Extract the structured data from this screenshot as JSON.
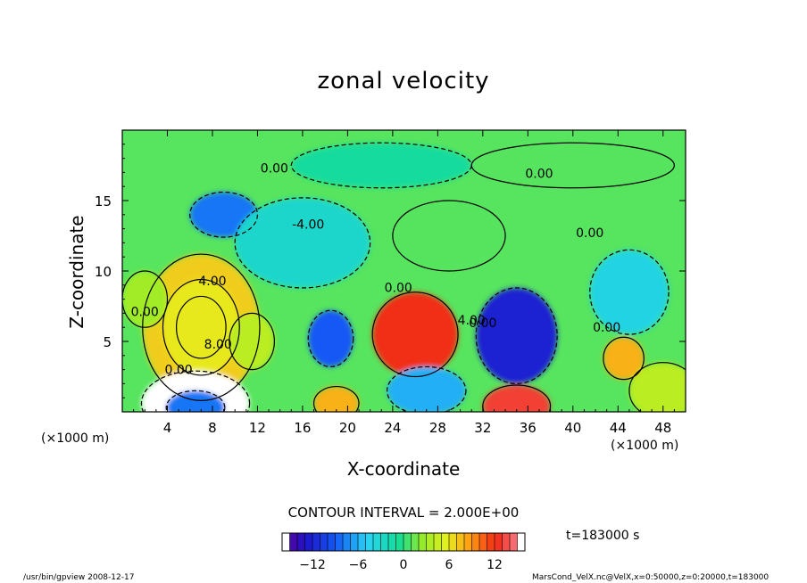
{
  "header": {
    "title": "zonal velocity"
  },
  "axes": {
    "xlabel": "X-coordinate",
    "ylabel": "Z-coordinate",
    "x_unit": "(×1000 m)",
    "z_unit": "(×1000 m)"
  },
  "info": {
    "contour_interval": "CONTOUR INTERVAL = 2.000E+00",
    "time": "t=183000 s"
  },
  "footer": {
    "left": "/usr/bin/gpview   2008-12-17",
    "right": "MarsCond_VelX.nc@VelX,x=0:50000,z=0:20000,t=183000"
  },
  "chart_data": {
    "type": "heatmap",
    "title": "zonal velocity",
    "xlabel": "X-coordinate",
    "ylabel": "Z-coordinate",
    "xlim": [
      0,
      50
    ],
    "ylim": [
      0,
      20
    ],
    "x_ticks": [
      "4",
      "8",
      "12",
      "16",
      "20",
      "24",
      "28",
      "32",
      "36",
      "40",
      "44",
      "48"
    ],
    "x_tick_values": [
      4,
      8,
      12,
      16,
      20,
      24,
      28,
      32,
      36,
      40,
      44,
      48
    ],
    "y_ticks": [
      "5",
      "10",
      "15"
    ],
    "y_tick_values": [
      5,
      10,
      15
    ],
    "contour_labels": [
      {
        "text": "0.00",
        "x": 13.5,
        "z": 17.0
      },
      {
        "text": "0.00",
        "x": 37.0,
        "z": 16.6
      },
      {
        "text": "-4.00",
        "x": 16.5,
        "z": 13.0
      },
      {
        "text": "4.00",
        "x": 8.0,
        "z": 9.0
      },
      {
        "text": "0.00",
        "x": 2.0,
        "z": 6.8
      },
      {
        "text": "8.00",
        "x": 8.5,
        "z": 4.5
      },
      {
        "text": "0.00",
        "x": 5.0,
        "z": 2.7
      },
      {
        "text": "0.00",
        "x": 24.5,
        "z": 8.5
      },
      {
        "text": "4.00",
        "x": 31.0,
        "z": 6.2
      },
      {
        "text": "0.00",
        "x": 32.0,
        "z": 6.0
      },
      {
        "text": "0.00",
        "x": 41.5,
        "z": 12.4
      },
      {
        "text": "0.00",
        "x": 43.0,
        "z": 5.7
      }
    ],
    "blobs": [
      {
        "x": 7.0,
        "z": 6.0,
        "rx": 5.2,
        "rz": 5.2,
        "v": 7
      },
      {
        "x": 7.0,
        "z": 6.0,
        "rx": 3.4,
        "rz": 3.4,
        "v": 6
      },
      {
        "x": 7.0,
        "z": 6.0,
        "rx": 2.2,
        "rz": 2.2,
        "v": 6
      },
      {
        "x": 6.5,
        "z": 0.6,
        "rx": 4.8,
        "rz": 2.3,
        "v": -16
      },
      {
        "x": 6.5,
        "z": 0.3,
        "rx": 2.6,
        "rz": 1.2,
        "v": -8
      },
      {
        "x": 18.5,
        "z": 5.2,
        "rx": 2.0,
        "rz": 2.0,
        "v": -9
      },
      {
        "x": 26.0,
        "z": 5.5,
        "rx": 3.8,
        "rz": 3.0,
        "v": 12
      },
      {
        "x": 35.0,
        "z": 5.4,
        "rx": 3.6,
        "rz": 3.4,
        "v": -12
      },
      {
        "x": 35.0,
        "z": 0.4,
        "rx": 3.0,
        "rz": 1.5,
        "v": 13
      },
      {
        "x": 19.0,
        "z": 0.6,
        "rx": 2.0,
        "rz": 1.2,
        "v": 8
      },
      {
        "x": 27.0,
        "z": 1.5,
        "rx": 3.5,
        "rz": 1.7,
        "v": -6
      },
      {
        "x": 9.0,
        "z": 14.0,
        "rx": 3.0,
        "rz": 1.6,
        "v": -8
      },
      {
        "x": 16.0,
        "z": 12.0,
        "rx": 6.0,
        "rz": 3.2,
        "v": -3
      },
      {
        "x": 44.5,
        "z": 3.8,
        "rx": 1.8,
        "rz": 1.5,
        "v": 8
      },
      {
        "x": 45.0,
        "z": 8.5,
        "rx": 3.5,
        "rz": 3.0,
        "v": -4
      },
      {
        "x": 11.5,
        "z": 5.0,
        "rx": 2.0,
        "rz": 2.0,
        "v": 4
      },
      {
        "x": 2.0,
        "z": 8.0,
        "rx": 2.0,
        "rz": 2.0,
        "v": 3
      },
      {
        "x": 23.0,
        "z": 17.5,
        "rx": 8.0,
        "rz": 1.6,
        "v": -1
      },
      {
        "x": 40.0,
        "z": 17.5,
        "rx": 9.0,
        "rz": 1.6,
        "v": 1
      },
      {
        "x": 29.0,
        "z": 12.5,
        "rx": 5.0,
        "rz": 2.5,
        "v": 1
      },
      {
        "x": 48.0,
        "z": 1.5,
        "rx": 3.0,
        "rz": 2.0,
        "v": 4
      }
    ],
    "colorbar": {
      "min": -16,
      "max": 16,
      "ticks": [
        "−12",
        "−6",
        "0",
        "6",
        "12"
      ],
      "tick_values": [
        -12,
        -6,
        0,
        6,
        12
      ]
    }
  }
}
